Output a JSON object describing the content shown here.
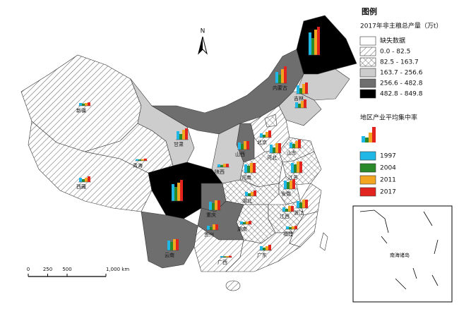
{
  "legend": {
    "title": "图例",
    "production": {
      "title": "2017年非主粮总产量（万t）",
      "classes": [
        {
          "label": "缺失数据"
        },
        {
          "label": "0.0 - 82.5",
          "range": [
            0,
            82.5
          ]
        },
        {
          "label": "82.5 - 163.7",
          "range": [
            82.5,
            163.7
          ]
        },
        {
          "label": "163.7 - 256.6",
          "range": [
            163.7,
            256.6
          ]
        },
        {
          "label": "256.6 - 482.8",
          "range": [
            256.6,
            482.8
          ]
        },
        {
          "label": "482.8 - 849.8",
          "range": [
            482.8,
            849.8
          ]
        }
      ]
    },
    "concentration": {
      "title": "地区产业平均集中率",
      "series": [
        {
          "name": "1997",
          "color": "#1fb7e6"
        },
        {
          "name": "2004",
          "color": "#2a8a2a"
        },
        {
          "name": "2011",
          "color": "#f2a51e"
        },
        {
          "name": "2017",
          "color": "#e3231e"
        }
      ]
    }
  },
  "north": "N",
  "scale": {
    "lim": [
      0,
      1000
    ],
    "ticks": [
      0,
      250,
      500,
      {
        "value": 1000,
        "label": "1,000 km"
      }
    ]
  },
  "inset": "南海诸岛",
  "provinces": [
    {
      "name": "新疆",
      "output": 40,
      "bars": [
        0.1,
        0.08,
        0.1,
        0.12
      ]
    },
    {
      "name": "西藏",
      "output": 10,
      "bars": [
        0.15,
        0.1,
        0.15,
        0.2
      ]
    },
    {
      "name": "青海",
      "output": 20,
      "bars": [
        0.06,
        0.05,
        0.06,
        0.08
      ]
    },
    {
      "name": "甘肃",
      "output": 200,
      "bars": [
        0.3,
        0.2,
        0.35,
        0.4
      ]
    },
    {
      "name": "内蒙古",
      "output": 400,
      "bars": [
        0.4,
        0.3,
        0.5,
        0.6
      ]
    },
    {
      "name": null,
      "output": 700,
      "bars": [
        0.8,
        0.6,
        0.9,
        1.0
      ]
    },
    {
      "name": "吉林",
      "output": 220,
      "bars": [
        0.3,
        0.2,
        0.35,
        0.4
      ]
    },
    {
      "name": null,
      "output": 200,
      "bars": [
        0.2,
        0.15,
        0.25,
        0.3
      ]
    },
    {
      "name": "北京",
      "output": 10,
      "bars": [
        0.15,
        0.1,
        0.2,
        0.25
      ]
    },
    {
      "name": "河北",
      "output": 130,
      "bars": [
        0.3,
        0.2,
        0.35,
        0.35
      ]
    },
    {
      "name": "山西",
      "output": 300,
      "bars": [
        0.25,
        0.2,
        0.3,
        0.3
      ]
    },
    {
      "name": "山东",
      "output": 150,
      "bars": [
        0.2,
        0.15,
        0.25,
        0.3
      ]
    },
    {
      "name": "陕西",
      "output": 200,
      "bars": [
        0.1,
        0.08,
        0.12,
        0.12
      ]
    },
    {
      "name": "河南",
      "output": 140,
      "bars": [
        0.3,
        0.25,
        0.35,
        0.35
      ]
    },
    {
      "name": "江苏",
      "output": 120,
      "bars": [
        0.35,
        0.3,
        0.4,
        0.4
      ]
    },
    {
      "name": null,
      "output": 800,
      "bars": [
        0.6,
        0.5,
        0.65,
        0.75
      ]
    },
    {
      "name": "重庆",
      "output": 350,
      "bars": [
        0.3,
        0.25,
        0.35,
        0.35
      ]
    },
    {
      "name": "湖北",
      "output": 130,
      "bars": [
        0.15,
        0.1,
        0.15,
        0.2
      ]
    },
    {
      "name": "安徽",
      "output": 110,
      "bars": [
        0.3,
        0.25,
        0.3,
        0.35
      ]
    },
    {
      "name": "贵州",
      "output": 350,
      "bars": [
        0.15,
        0.1,
        0.2,
        0.2
      ]
    },
    {
      "name": "湖南",
      "output": 140,
      "bars": [
        0.1,
        0.08,
        0.1,
        0.12
      ]
    },
    {
      "name": "江西",
      "output": 120,
      "bars": [
        0.15,
        0.1,
        0.2,
        0.2
      ]
    },
    {
      "name": "浙江",
      "output": 60,
      "bars": [
        0.25,
        0.2,
        0.3,
        0.3
      ]
    },
    {
      "name": "云南",
      "output": 400,
      "bars": [
        0.35,
        0.3,
        0.4,
        0.4
      ]
    },
    {
      "name": "广西",
      "output": 70,
      "bars": [
        0.05,
        0.04,
        0.05,
        0.06
      ]
    },
    {
      "name": "广东",
      "output": 60,
      "bars": [
        0.15,
        0.1,
        0.15,
        0.2
      ]
    },
    {
      "name": "福建",
      "output": 50,
      "bars": [
        0.1,
        0.08,
        0.1,
        0.12
      ]
    }
  ]
}
